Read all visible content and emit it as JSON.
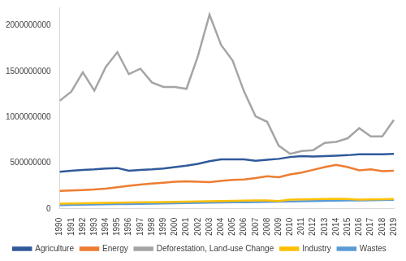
{
  "chart_data": {
    "type": "line",
    "categories": [
      "1990",
      "1991",
      "1992",
      "1993",
      "1994",
      "1995",
      "1996",
      "1997",
      "1998",
      "1999",
      "2000",
      "2001",
      "2002",
      "2003",
      "2004",
      "2005",
      "2006",
      "2007",
      "2008",
      "2009",
      "2010",
      "2011",
      "2012",
      "2013",
      "2014",
      "2015",
      "2016",
      "2017",
      "2018",
      "2019"
    ],
    "series": [
      {
        "name": "Agriculture",
        "color": "#30599b",
        "values": [
          405000000,
          415000000,
          425000000,
          430000000,
          440000000,
          445000000,
          415000000,
          425000000,
          430000000,
          440000000,
          455000000,
          470000000,
          490000000,
          520000000,
          540000000,
          540000000,
          540000000,
          525000000,
          535000000,
          545000000,
          565000000,
          575000000,
          570000000,
          575000000,
          580000000,
          585000000,
          595000000,
          595000000,
          595000000,
          600000000
        ]
      },
      {
        "name": "Energy",
        "color": "#ed7d31",
        "values": [
          195000000,
          200000000,
          205000000,
          210000000,
          220000000,
          235000000,
          250000000,
          265000000,
          275000000,
          285000000,
          295000000,
          300000000,
          295000000,
          290000000,
          305000000,
          315000000,
          320000000,
          335000000,
          355000000,
          345000000,
          375000000,
          395000000,
          425000000,
          455000000,
          480000000,
          455000000,
          420000000,
          430000000,
          410000000,
          415000000
        ]
      },
      {
        "name": "Deforestation, Land-use Change",
        "color": "#a5a5a5",
        "values": [
          1180000000,
          1280000000,
          1490000000,
          1290000000,
          1550000000,
          1710000000,
          1470000000,
          1530000000,
          1380000000,
          1330000000,
          1330000000,
          1310000000,
          1670000000,
          2120000000,
          1790000000,
          1620000000,
          1280000000,
          1010000000,
          950000000,
          690000000,
          600000000,
          630000000,
          640000000,
          720000000,
          730000000,
          770000000,
          880000000,
          790000000,
          790000000,
          970000000
        ]
      },
      {
        "name": "Industry",
        "color": "#ffc000",
        "values": [
          55000000,
          58000000,
          60000000,
          62000000,
          64000000,
          66000000,
          68000000,
          70000000,
          72000000,
          74000000,
          76000000,
          78000000,
          80000000,
          82000000,
          84000000,
          86000000,
          88000000,
          90000000,
          92000000,
          85000000,
          100000000,
          102000000,
          104000000,
          106000000,
          108000000,
          106000000,
          100000000,
          102000000,
          104000000,
          106000000
        ]
      },
      {
        "name": "Wastes",
        "color": "#5b9bd5",
        "values": [
          40000000,
          42000000,
          44000000,
          46000000,
          48000000,
          50000000,
          52000000,
          54000000,
          56000000,
          58000000,
          60000000,
          62000000,
          64000000,
          66000000,
          68000000,
          70000000,
          72000000,
          74000000,
          76000000,
          78000000,
          80000000,
          82000000,
          84000000,
          86000000,
          88000000,
          90000000,
          92000000,
          94000000,
          96000000,
          98000000
        ]
      }
    ],
    "ylim": [
      0,
      2200000000
    ],
    "yticks": [
      0,
      500000000,
      1000000000,
      1500000000,
      2000000000
    ],
    "grid": false,
    "legend": "bottom"
  }
}
